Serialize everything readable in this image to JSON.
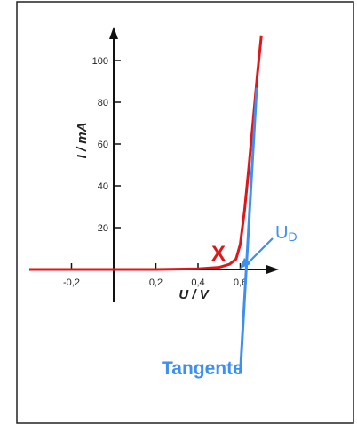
{
  "chart_data": {
    "type": "line",
    "xlabel": "U / V",
    "ylabel": "I / mA",
    "x_ticks": [
      -0.2,
      0.2,
      0.4,
      0.6
    ],
    "x_tick_labels": [
      "-0,2",
      "0,2",
      "0,4",
      "0,6"
    ],
    "y_ticks": [
      20,
      40,
      60,
      80,
      100
    ],
    "y_tick_labels": [
      "20",
      "40",
      "60",
      "80",
      "100"
    ],
    "xlim": [
      -0.4,
      0.8
    ],
    "ylim": [
      -18,
      112
    ],
    "grid": false,
    "series": [
      {
        "color": "#e0161b",
        "x": [
          -0.4,
          -0.2,
          0.0,
          0.2,
          0.4,
          0.5,
          0.55,
          0.58,
          0.6,
          0.62,
          0.64,
          0.66,
          0.68,
          0.7
        ],
        "y": [
          0,
          0,
          0,
          0,
          0.3,
          1.0,
          2.5,
          5,
          12,
          28,
          48,
          70,
          92,
          112
        ]
      },
      {
        "color": "#3d8ff0",
        "x": [
          0.6,
          0.678
        ],
        "y": [
          -50,
          87
        ]
      }
    ],
    "annotations": {
      "x_marker": "X",
      "ud_label": "U",
      "ud_subscript": "D",
      "tangent_label": "Tangente"
    },
    "colors": {
      "axis": "#111111",
      "curve": "#e0161b",
      "tangent": "#3d8ff0",
      "marker": "#e0161b",
      "frame": "#222222"
    }
  }
}
